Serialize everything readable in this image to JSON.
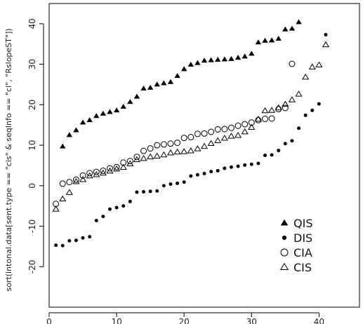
{
  "chart_data": {
    "type": "scatter",
    "title": "",
    "xlabel": "",
    "ylabel": "sort(intonal.data[sent.type == \"cis\" & seqInfo == \"cl\", \"RslopeST\"])",
    "xlim": [
      0,
      46
    ],
    "ylim": [
      -30,
      45
    ],
    "x_ticks": [
      0,
      10,
      20,
      30,
      40
    ],
    "y_ticks": [
      -20,
      -10,
      0,
      10,
      20,
      30,
      40
    ],
    "x_tick_labels": [
      "0",
      "10",
      "20",
      "30",
      "40"
    ],
    "y_tick_labels": [
      "-20",
      "-10",
      "0",
      "10",
      "20",
      "30",
      "40"
    ],
    "grid": false,
    "legend_position": "bottom-right",
    "colors": {
      "ink": "#000000"
    },
    "series": [
      {
        "name": "QIS",
        "marker": "filled-triangle",
        "x": [
          2,
          3,
          4,
          5,
          6,
          7,
          8,
          9,
          10,
          11,
          12,
          13,
          14,
          15,
          16,
          17,
          18,
          19,
          20,
          21,
          22,
          23,
          24,
          25,
          26,
          27,
          28,
          29,
          30,
          31,
          32,
          33,
          34,
          35,
          36,
          37
        ],
        "y": [
          9.7,
          12.5,
          13.7,
          15.6,
          16.2,
          17.2,
          17.8,
          18.2,
          18.6,
          19.5,
          20.7,
          22.0,
          24.0,
          24.2,
          25.0,
          25.3,
          25.6,
          27.1,
          28.8,
          29.9,
          30.3,
          30.9,
          31.0,
          31.1,
          31.2,
          31.3,
          31.6,
          31.9,
          32.6,
          35.4,
          35.8,
          35.9,
          36.3,
          38.6,
          38.8,
          40.4
        ]
      },
      {
        "name": "DIS",
        "marker": "filled-circle",
        "x": [
          1,
          2,
          3,
          4,
          5,
          6,
          7,
          8,
          9,
          10,
          11,
          12,
          13,
          14,
          15,
          16,
          17,
          18,
          19,
          20,
          21,
          22,
          23,
          24,
          25,
          26,
          27,
          28,
          29,
          30,
          31,
          32,
          33,
          34,
          35,
          36,
          37,
          38,
          39,
          40,
          41
        ],
        "y": [
          -14.7,
          -14.8,
          -13.6,
          -13.5,
          -12.9,
          -12.6,
          -8.6,
          -7.6,
          -5.8,
          -5.4,
          -5.0,
          -3.9,
          -1.6,
          -1.5,
          -1.4,
          -1.3,
          0.0,
          0.4,
          0.6,
          0.9,
          2.4,
          2.7,
          3.0,
          3.5,
          3.7,
          4.3,
          4.6,
          4.8,
          5.1,
          5.3,
          5.5,
          7.5,
          7.6,
          8.7,
          10.4,
          11.1,
          14.2,
          17.4,
          18.6,
          20.2,
          37.3
        ]
      },
      {
        "name": "CIA",
        "marker": "open-circle",
        "x": [
          1,
          2,
          3,
          4,
          5,
          6,
          7,
          8,
          9,
          10,
          11,
          12,
          13,
          14,
          15,
          16,
          17,
          18,
          19,
          20,
          21,
          22,
          23,
          24,
          25,
          26,
          27,
          28,
          29,
          30,
          31,
          32,
          33,
          34,
          35,
          36
        ],
        "y": [
          -4.5,
          0.5,
          0.9,
          1.5,
          2.5,
          3.1,
          3.4,
          3.7,
          4.3,
          4.6,
          5.7,
          6.1,
          7.1,
          8.6,
          9.2,
          10.0,
          10.2,
          10.4,
          10.6,
          11.8,
          12.0,
          12.8,
          12.9,
          13.3,
          13.9,
          14.0,
          14.3,
          14.8,
          15.2,
          15.6,
          16.2,
          16.5,
          16.6,
          18.9,
          19.2,
          30.1
        ]
      },
      {
        "name": "CIS",
        "marker": "open-triangle",
        "x": [
          1,
          2,
          3,
          4,
          5,
          6,
          7,
          8,
          9,
          10,
          11,
          12,
          13,
          14,
          15,
          16,
          17,
          18,
          19,
          20,
          21,
          22,
          23,
          24,
          25,
          26,
          27,
          28,
          29,
          30,
          31,
          32,
          33,
          34,
          35,
          36,
          37,
          38,
          39,
          40,
          41
        ],
        "y": [
          -5.8,
          -3.3,
          -1.7,
          1.0,
          1.5,
          2.4,
          2.7,
          3.1,
          3.6,
          4.1,
          4.5,
          5.4,
          6.4,
          6.7,
          7.1,
          7.3,
          7.6,
          8.1,
          8.3,
          8.4,
          8.6,
          9.1,
          9.7,
          10.4,
          11.1,
          11.7,
          12.2,
          12.4,
          13.3,
          14.4,
          16.4,
          18.5,
          18.6,
          19.2,
          20.1,
          21.2,
          22.6,
          26.8,
          29.3,
          29.8,
          34.8
        ]
      }
    ],
    "legend": [
      {
        "label": "QIS",
        "marker": "filled-triangle"
      },
      {
        "label": "DIS",
        "marker": "filled-circle"
      },
      {
        "label": "CIA",
        "marker": "open-circle"
      },
      {
        "label": "CIS",
        "marker": "open-triangle"
      }
    ]
  }
}
